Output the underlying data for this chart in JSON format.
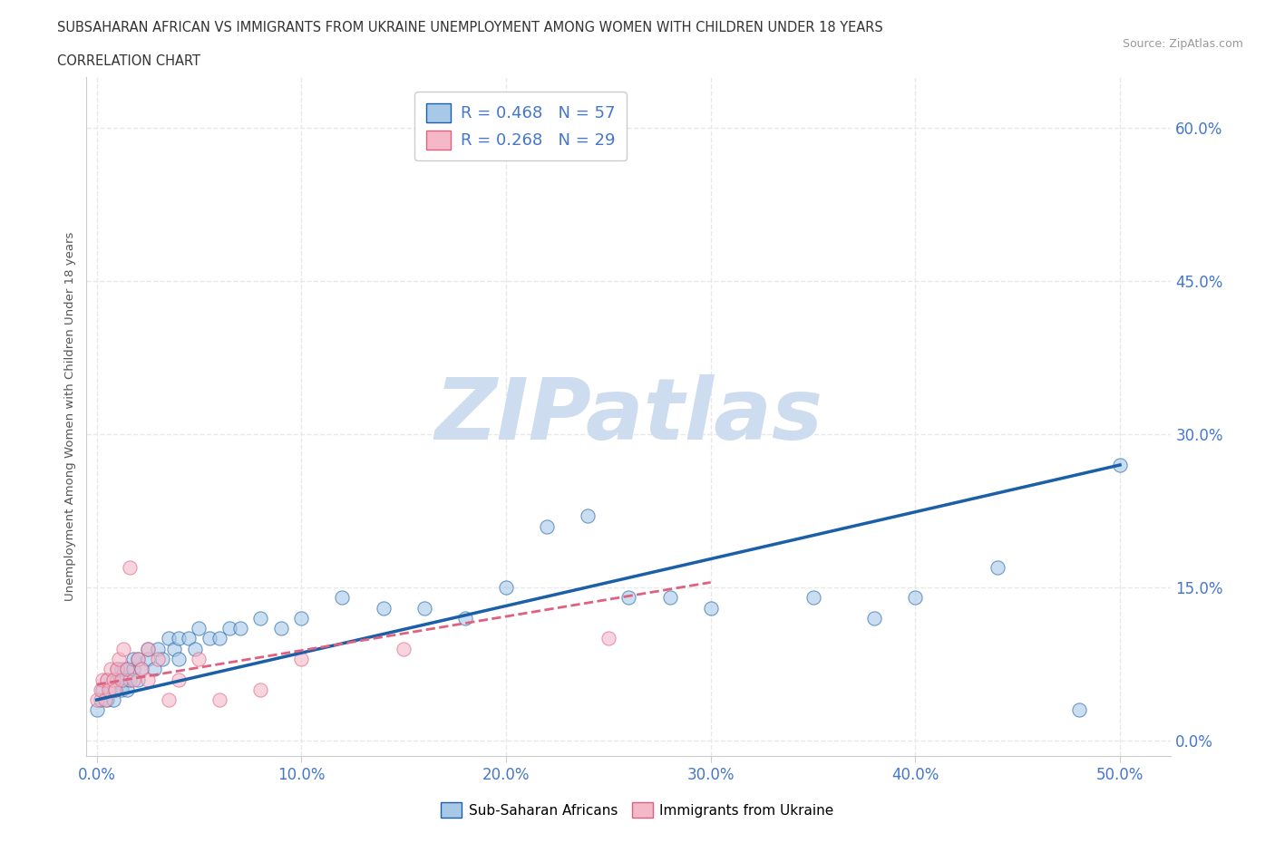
{
  "title_line1": "SUBSAHARAN AFRICAN VS IMMIGRANTS FROM UKRAINE UNEMPLOYMENT AMONG WOMEN WITH CHILDREN UNDER 18 YEARS",
  "title_line2": "CORRELATION CHART",
  "source_text": "Source: ZipAtlas.com",
  "xlabel_ticks": [
    "0.0%",
    "10.0%",
    "20.0%",
    "30.0%",
    "40.0%",
    "50.0%"
  ],
  "xlabel_tick_vals": [
    0.0,
    0.1,
    0.2,
    0.3,
    0.4,
    0.5
  ],
  "ylabel": "Unemployment Among Women with Children Under 18 years",
  "ylabel_ticks": [
    "0.0%",
    "15.0%",
    "30.0%",
    "45.0%",
    "60.0%"
  ],
  "ylabel_tick_vals": [
    0.0,
    0.15,
    0.3,
    0.45,
    0.6
  ],
  "xlim": [
    -0.005,
    0.525
  ],
  "ylim": [
    -0.015,
    0.65
  ],
  "background_color": "#ffffff",
  "watermark_text": "ZIPatlas",
  "watermark_color": "#cddcee",
  "blue_R": 0.468,
  "blue_N": 57,
  "pink_R": 0.268,
  "pink_N": 29,
  "blue_color": "#a8c8e8",
  "pink_color": "#f4b8c8",
  "blue_line_color": "#1a5fa8",
  "pink_line_color": "#e06080",
  "grid_color": "#e8e8e8",
  "grid_style": "--",
  "tick_color": "#4477cc",
  "blue_scatter_x": [
    0.0,
    0.002,
    0.003,
    0.005,
    0.005,
    0.007,
    0.008,
    0.008,
    0.009,
    0.01,
    0.01,
    0.012,
    0.012,
    0.013,
    0.015,
    0.015,
    0.016,
    0.018,
    0.018,
    0.02,
    0.02,
    0.022,
    0.025,
    0.025,
    0.028,
    0.03,
    0.032,
    0.035,
    0.038,
    0.04,
    0.04,
    0.045,
    0.048,
    0.05,
    0.055,
    0.06,
    0.065,
    0.07,
    0.08,
    0.09,
    0.1,
    0.12,
    0.14,
    0.16,
    0.18,
    0.2,
    0.22,
    0.24,
    0.26,
    0.28,
    0.3,
    0.35,
    0.38,
    0.4,
    0.44,
    0.48,
    0.5
  ],
  "blue_scatter_y": [
    0.03,
    0.04,
    0.05,
    0.04,
    0.06,
    0.05,
    0.04,
    0.06,
    0.05,
    0.06,
    0.07,
    0.05,
    0.07,
    0.06,
    0.05,
    0.07,
    0.06,
    0.07,
    0.08,
    0.06,
    0.08,
    0.07,
    0.08,
    0.09,
    0.07,
    0.09,
    0.08,
    0.1,
    0.09,
    0.08,
    0.1,
    0.1,
    0.09,
    0.11,
    0.1,
    0.1,
    0.11,
    0.11,
    0.12,
    0.11,
    0.12,
    0.14,
    0.13,
    0.13,
    0.12,
    0.15,
    0.21,
    0.22,
    0.14,
    0.14,
    0.13,
    0.14,
    0.12,
    0.14,
    0.17,
    0.03,
    0.27
  ],
  "pink_scatter_x": [
    0.0,
    0.002,
    0.003,
    0.004,
    0.005,
    0.006,
    0.007,
    0.008,
    0.009,
    0.01,
    0.011,
    0.012,
    0.013,
    0.015,
    0.016,
    0.018,
    0.02,
    0.022,
    0.025,
    0.025,
    0.03,
    0.035,
    0.04,
    0.05,
    0.06,
    0.08,
    0.1,
    0.15,
    0.25
  ],
  "pink_scatter_y": [
    0.04,
    0.05,
    0.06,
    0.04,
    0.06,
    0.05,
    0.07,
    0.06,
    0.05,
    0.07,
    0.08,
    0.06,
    0.09,
    0.07,
    0.17,
    0.06,
    0.08,
    0.07,
    0.06,
    0.09,
    0.08,
    0.04,
    0.06,
    0.08,
    0.04,
    0.05,
    0.08,
    0.09,
    0.1
  ],
  "legend_fontsize": 13,
  "title_fontsize": 10.5,
  "tick_fontsize": 12,
  "scatter_size": 120,
  "scatter_alpha": 0.6
}
